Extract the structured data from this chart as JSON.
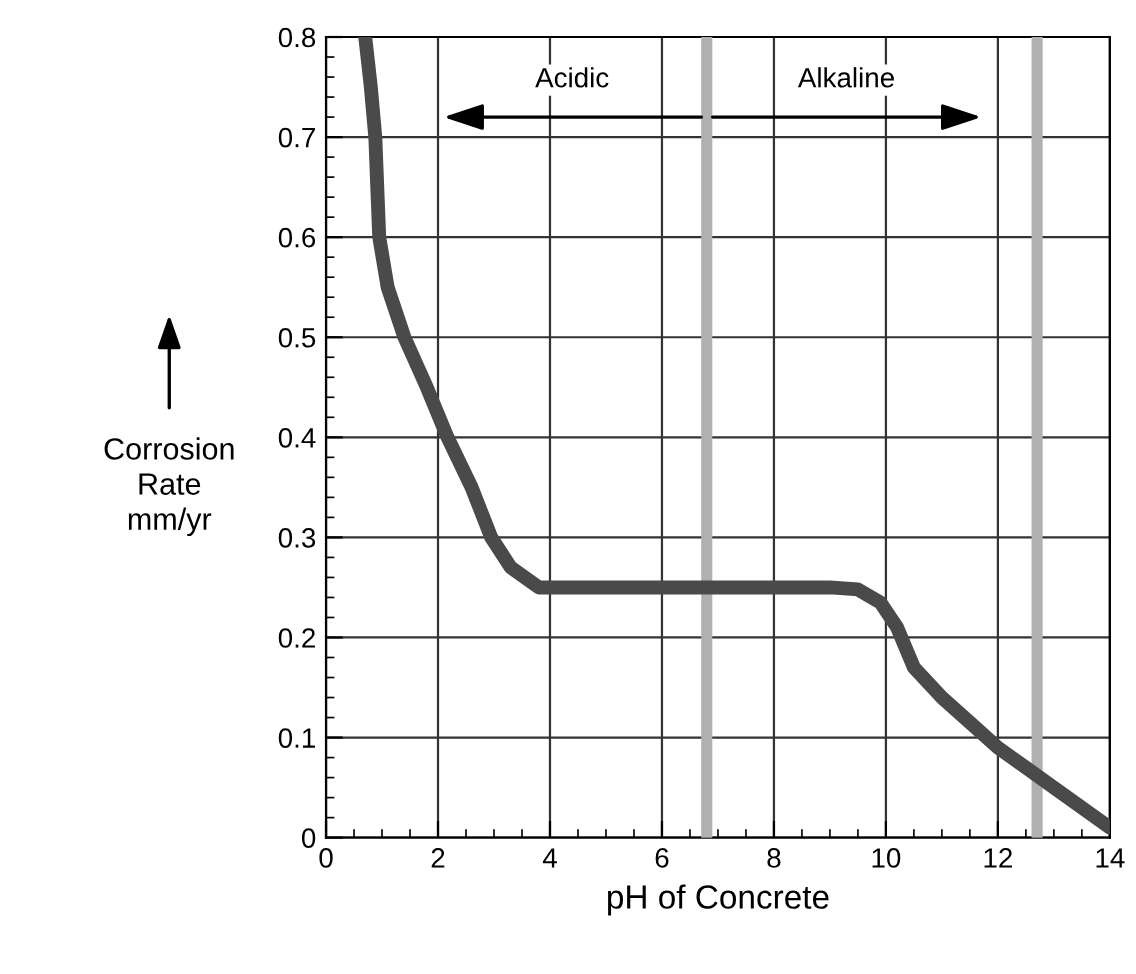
{
  "chart_data": {
    "type": "line",
    "xlabel": "pH of Concrete",
    "ylabel": "Corrosion\nRate\nmm/yr",
    "x": [
      0.7,
      0.8,
      0.88,
      0.95,
      1.1,
      1.4,
      1.8,
      2.17,
      2.6,
      2.95,
      3.3,
      3.8,
      5,
      7,
      9,
      9.5,
      9.9,
      10.2,
      10.5,
      11,
      11.5,
      12,
      13,
      14
    ],
    "series": [
      {
        "color": "#4a4a4a",
        "values": [
          0.8,
          0.75,
          0.7,
          0.6,
          0.55,
          0.5,
          0.45,
          0.4,
          0.35,
          0.3,
          0.27,
          0.25,
          0.25,
          0.25,
          0.25,
          0.248,
          0.235,
          0.21,
          0.17,
          0.14,
          0.115,
          0.09,
          0.05,
          0.01
        ]
      }
    ],
    "xlim": [
      0,
      14
    ],
    "ylim": [
      0,
      0.8
    ],
    "xticks": [
      0,
      2,
      4,
      6,
      8,
      10,
      12,
      14
    ],
    "yticks": [
      0,
      0.1,
      0.2,
      0.3,
      0.4,
      0.5,
      0.6,
      0.7,
      0.8
    ],
    "grid": true,
    "legend": false,
    "marker": "none",
    "line_style": "solid",
    "ref_lines": [
      {
        "axis": "x",
        "value": 6.8,
        "color": "#b0b0b0"
      },
      {
        "axis": "x",
        "value": 12.7,
        "color": "#b0b0b0"
      }
    ],
    "annotations": [
      "Acidic",
      "Alkaline"
    ]
  }
}
